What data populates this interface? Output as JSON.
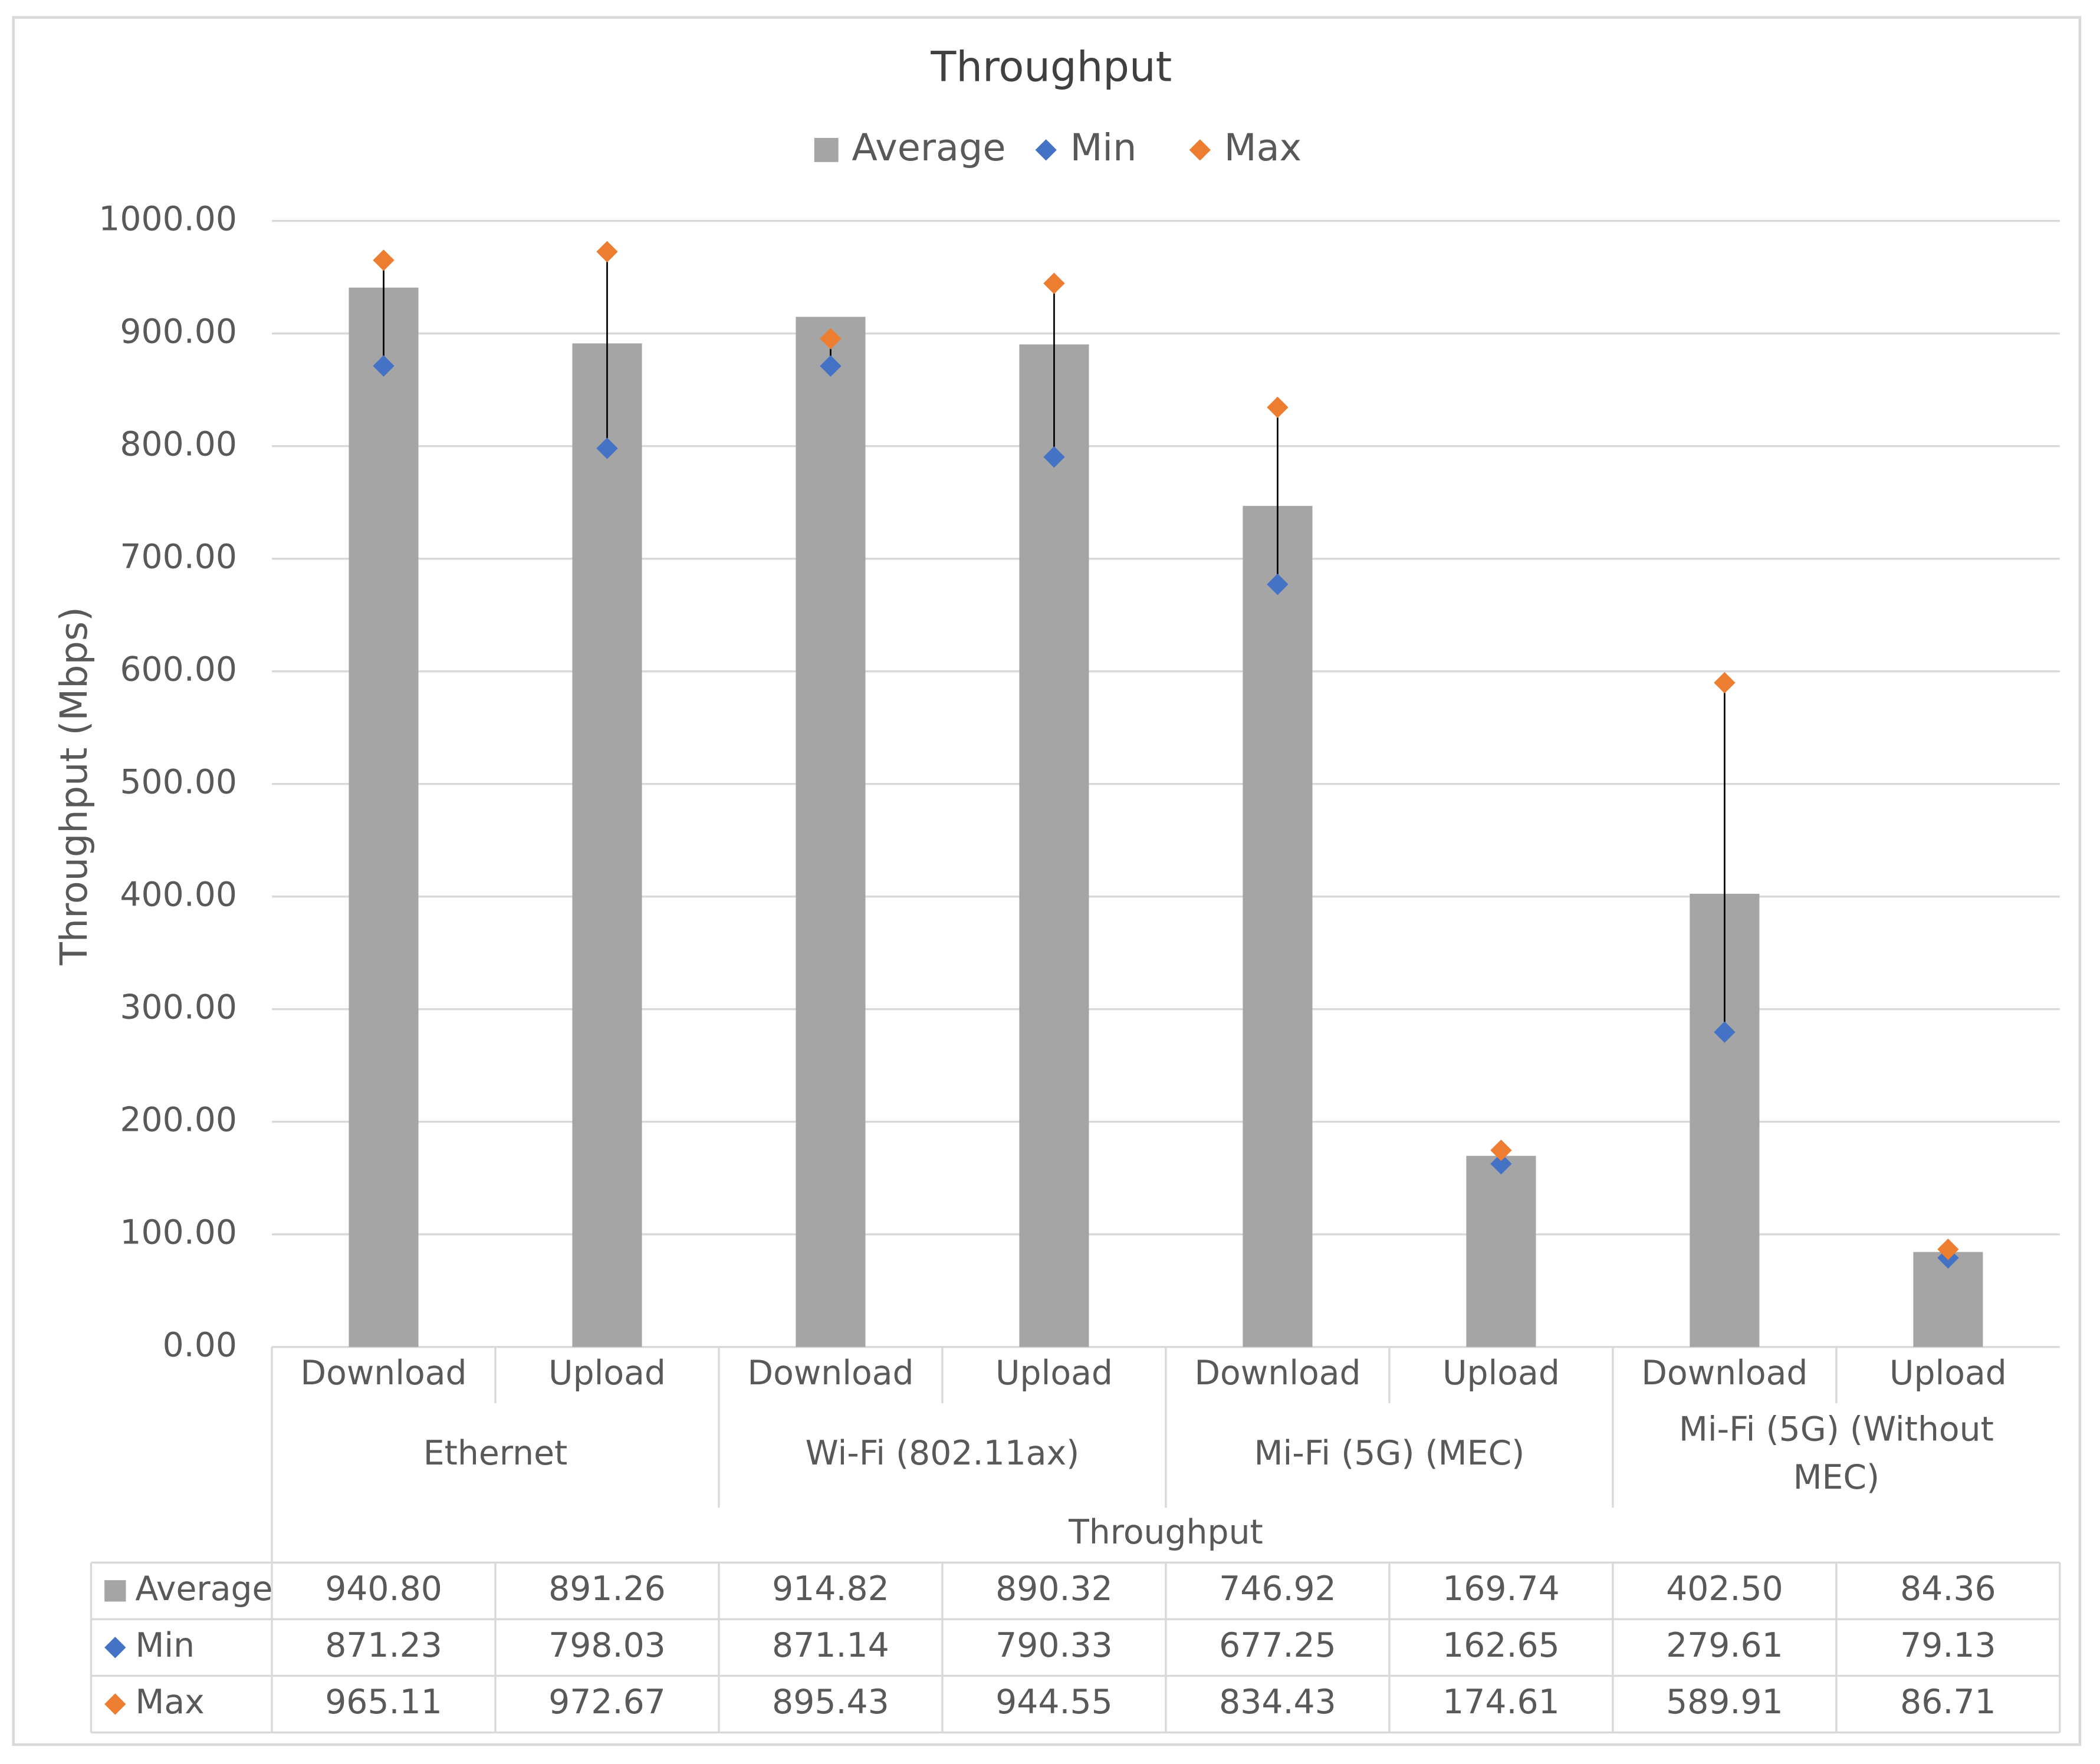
{
  "chart_data": {
    "type": "bar",
    "title": "Throughput",
    "ylabel": "Throughput (Mbps)",
    "xlabel": "Throughput",
    "ylim": [
      0,
      1000
    ],
    "y_ticks": [
      "0.00",
      "100.00",
      "200.00",
      "300.00",
      "400.00",
      "500.00",
      "600.00",
      "700.00",
      "800.00",
      "900.00",
      "1000.00"
    ],
    "y_tick_values": [
      0,
      100,
      200,
      300,
      400,
      500,
      600,
      700,
      800,
      900,
      1000
    ],
    "grid": true,
    "legend_position": "top-center",
    "groups": [
      {
        "label": "Ethernet",
        "categories": [
          "Download",
          "Upload"
        ]
      },
      {
        "label": "Wi-Fi (802.11ax)",
        "categories": [
          "Download",
          "Upload"
        ]
      },
      {
        "label": "Mi-Fi (5G) (MEC)",
        "categories": [
          "Download",
          "Upload"
        ]
      },
      {
        "label": "Mi-Fi (5G) (Without MEC)",
        "label_lines": [
          "Mi-Fi (5G) (Without",
          "MEC)"
        ],
        "categories": [
          "Download",
          "Upload"
        ]
      }
    ],
    "series": [
      {
        "name": "Average",
        "kind": "bar",
        "marker": "square",
        "color": "#a5a5a5",
        "values": [
          940.8,
          891.26,
          914.82,
          890.32,
          746.92,
          169.74,
          402.5,
          84.36
        ],
        "labels": [
          "940.80",
          "891.26",
          "914.82",
          "890.32",
          "746.92",
          "169.74",
          "402.50",
          "84.36"
        ]
      },
      {
        "name": "Min",
        "kind": "marker",
        "marker": "diamond",
        "color": "#4472c4",
        "values": [
          871.23,
          798.03,
          871.14,
          790.33,
          677.25,
          162.65,
          279.61,
          79.13
        ],
        "labels": [
          "871.23",
          "798.03",
          "871.14",
          "790.33",
          "677.25",
          "162.65",
          "279.61",
          "79.13"
        ]
      },
      {
        "name": "Max",
        "kind": "marker",
        "marker": "diamond",
        "color": "#ed7d31",
        "values": [
          965.11,
          972.67,
          895.43,
          944.55,
          834.43,
          174.61,
          589.91,
          86.71
        ],
        "labels": [
          "965.11",
          "972.67",
          "895.43",
          "944.55",
          "834.43",
          "174.61",
          "589.91",
          "86.71"
        ]
      }
    ],
    "colors": {
      "grid": "#d9d9d9",
      "text": "#595959",
      "title": "#404040",
      "border": "#d9d9d9",
      "whisker": "#000000"
    }
  }
}
